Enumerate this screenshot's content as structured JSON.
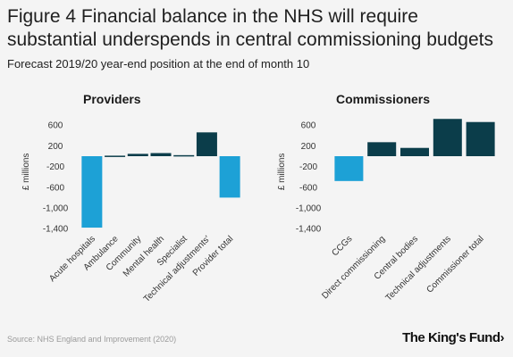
{
  "title": "Figure 4 Financial balance in the NHS will require substantial underspends in central commissioning budgets",
  "subtitle": "Forecast 2019/20 year-end position at the end of month 10",
  "source": "Source: NHS England and Improvement (2020)",
  "brand": "The King's Fund",
  "brand_icon": "chevron-right-icon",
  "colors": {
    "positive": "#0b3d4a",
    "negative": "#1da1d6",
    "total": "#1da1d6"
  },
  "chart_data": [
    {
      "type": "bar",
      "title": "Providers",
      "ylabel": "£ millions",
      "ylim": [
        -1400,
        800
      ],
      "yticks": [
        600,
        200,
        -200,
        -600,
        -1000,
        -1400
      ],
      "ytick_labels": [
        "600",
        "200",
        "-200",
        "-600",
        "-1,000",
        "-1,400"
      ],
      "categories": [
        "Acute hospitals",
        "Ambulance",
        "Community",
        "Mental health",
        "Specialist",
        "Technical adjustments'",
        "Provider total"
      ],
      "values": [
        -1380,
        10,
        45,
        60,
        20,
        460,
        -800
      ]
    },
    {
      "type": "bar",
      "title": "Commissioners",
      "ylabel": "£ millions",
      "ylim": [
        -1400,
        800
      ],
      "yticks": [
        600,
        200,
        -200,
        -600,
        -1000,
        -1400
      ],
      "ytick_labels": [
        "600",
        "200",
        "-200",
        "-600",
        "-1,000",
        "-1,400"
      ],
      "categories": [
        "CCGs",
        "Direct commissioning",
        "Central bodies",
        "Technical adjustments",
        "Commissioner total"
      ],
      "values": [
        -480,
        270,
        160,
        720,
        660
      ]
    }
  ]
}
